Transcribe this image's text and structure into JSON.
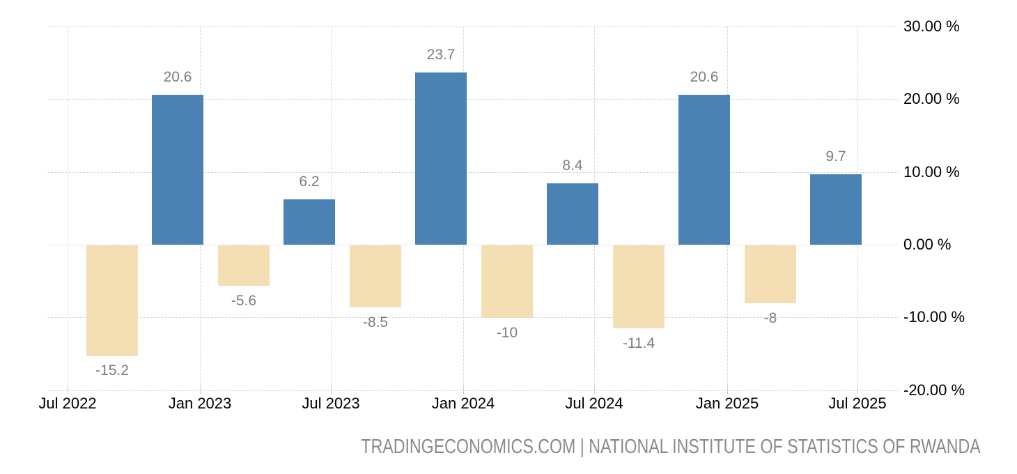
{
  "page": {
    "footer": "TRADINGECONOMICS.COM | NATIONAL INSTITUTE OF STATISTICS OF RWANDA"
  },
  "chart_data": {
    "type": "bar",
    "title": "",
    "values": [
      -15.2,
      20.6,
      -5.6,
      6.2,
      -8.5,
      23.7,
      -10,
      8.4,
      -11.4,
      20.6,
      -8,
      9.7
    ],
    "bar_value_labels": [
      "-15.2",
      "20.6",
      "-5.6",
      "6.2",
      "-8.5",
      "23.7",
      "-10",
      "8.4",
      "-11.4",
      "20.6",
      "-8",
      "9.7"
    ],
    "x_tick_labels": [
      "Jul 2022",
      "Jan 2023",
      "Jul 2023",
      "Jan 2024",
      "Jul 2024",
      "Jan 2025",
      "Jul 2025"
    ],
    "y_ticks": [
      {
        "value": 30,
        "label": "30.00 %"
      },
      {
        "value": 20,
        "label": "20.00 %"
      },
      {
        "value": 10,
        "label": "10.00 %"
      },
      {
        "value": 0,
        "label": "0.00 %"
      },
      {
        "value": -10,
        "label": "-10.00 %"
      },
      {
        "value": -20,
        "label": "-20.00 %"
      }
    ],
    "ylim": [
      -20,
      30
    ],
    "grid": true,
    "legend_position": "none",
    "y_axis_side": "right",
    "colors": {
      "positive_bar": "#4a82b4",
      "negative_bar": "#f4deb3",
      "grid_line": "#cccccc",
      "axis_text": "#000000",
      "value_label_text": "#7d7d7d",
      "footer_text": "#8a8a8a"
    }
  }
}
